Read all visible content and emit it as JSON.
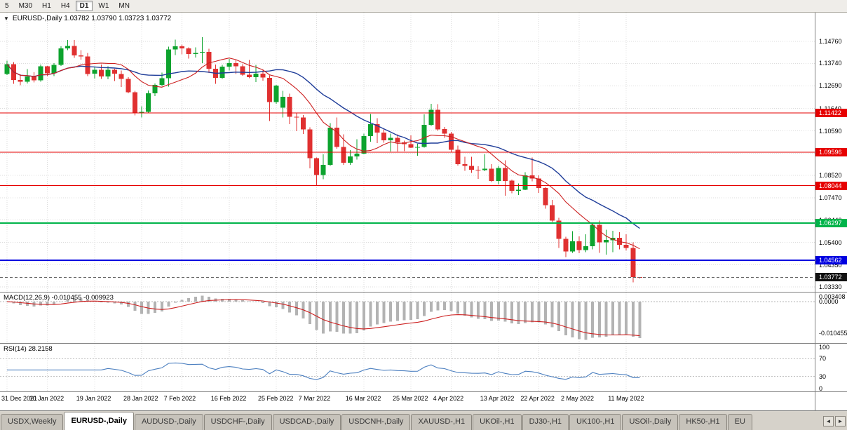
{
  "toolbar": {
    "timeframes": [
      "5",
      "M30",
      "H1",
      "H4",
      "D1",
      "W1",
      "MN"
    ],
    "active": "D1"
  },
  "chart": {
    "collapse_icon": "▼",
    "info_line": "EURUSD-,Daily 1.03782 1.03790 1.03723 1.03772"
  },
  "colors": {
    "up": "#0da32e",
    "down": "#e03030",
    "ma_fast": "#cc1f1f",
    "ma_slow": "#1f3d99",
    "macd_hist": "#b3b3b3",
    "macd_signal": "#cc1f1f",
    "rsi_line": "#4a7ebf",
    "grid": "#dcdcdc",
    "current_line": "#666666",
    "current_badge": "#111111"
  },
  "chart_data": {
    "type": "candlestick",
    "symbol": "EURUSD-",
    "timeframe": "Daily",
    "last_ohlc": {
      "open": 1.03782,
      "high": 1.0379,
      "low": 1.03723,
      "close": 1.03772
    },
    "price_axis": {
      "max": 1.161,
      "min": 1.031,
      "labels": [
        "1.14760",
        "1.13740",
        "1.12690",
        "1.11640",
        "1.10590",
        "1.09550",
        "1.08520",
        "1.07470",
        "1.06440",
        "1.05400",
        "1.04350",
        "1.03330"
      ]
    },
    "x_axis_labels": [
      {
        "text": "31 Dec 2021",
        "i": 0
      },
      {
        "text": "10 Jan 2022",
        "i": 6
      },
      {
        "text": "19 Jan 2022",
        "i": 13
      },
      {
        "text": "28 Jan 2022",
        "i": 20
      },
      {
        "text": "7 Feb 2022",
        "i": 26
      },
      {
        "text": "16 Feb 2022",
        "i": 33
      },
      {
        "text": "25 Feb 2022",
        "i": 40
      },
      {
        "text": "7 Mar 2022",
        "i": 46
      },
      {
        "text": "16 Mar 2022",
        "i": 53
      },
      {
        "text": "25 Mar 2022",
        "i": 60
      },
      {
        "text": "4 Apr 2022",
        "i": 66
      },
      {
        "text": "13 Apr 2022",
        "i": 73
      },
      {
        "text": "22 Apr 2022",
        "i": 79
      },
      {
        "text": "2 May 2022",
        "i": 85
      },
      {
        "text": "11 May 2022",
        "i": 92
      }
    ],
    "candles": [
      [
        1.1325,
        1.1386,
        1.1319,
        1.137
      ],
      [
        1.137,
        1.1379,
        1.1279,
        1.1297
      ],
      [
        1.1297,
        1.1323,
        1.1272,
        1.1288
      ],
      [
        1.1288,
        1.1347,
        1.128,
        1.1312
      ],
      [
        1.1312,
        1.1333,
        1.1285,
        1.1295
      ],
      [
        1.1295,
        1.1368,
        1.1288,
        1.136
      ],
      [
        1.136,
        1.1362,
        1.1314,
        1.1327
      ],
      [
        1.1327,
        1.1375,
        1.1315,
        1.1367
      ],
      [
        1.1367,
        1.1453,
        1.1361,
        1.1443
      ],
      [
        1.1443,
        1.1482,
        1.1435,
        1.1455
      ],
      [
        1.1455,
        1.1483,
        1.1399,
        1.1411
      ],
      [
        1.1411,
        1.1436,
        1.1391,
        1.1406
      ],
      [
        1.1406,
        1.1423,
        1.1314,
        1.1325
      ],
      [
        1.1325,
        1.1359,
        1.1303,
        1.1343
      ],
      [
        1.1343,
        1.1369,
        1.1301,
        1.1313
      ],
      [
        1.1313,
        1.136,
        1.13,
        1.1344
      ],
      [
        1.1344,
        1.1349,
        1.1291,
        1.1325
      ],
      [
        1.1325,
        1.134,
        1.1264,
        1.1301
      ],
      [
        1.1301,
        1.131,
        1.1234,
        1.124
      ],
      [
        1.124,
        1.1246,
        1.1131,
        1.1144
      ],
      [
        1.1144,
        1.1174,
        1.1121,
        1.1148
      ],
      [
        1.1148,
        1.1248,
        1.1141,
        1.1235
      ],
      [
        1.1235,
        1.128,
        1.1222,
        1.1273
      ],
      [
        1.1273,
        1.1331,
        1.1267,
        1.1305
      ],
      [
        1.1305,
        1.1452,
        1.1266,
        1.1438
      ],
      [
        1.1438,
        1.1484,
        1.1412,
        1.1453
      ],
      [
        1.1453,
        1.1461,
        1.1415,
        1.1443
      ],
      [
        1.1443,
        1.1449,
        1.1396,
        1.1417
      ],
      [
        1.1417,
        1.1448,
        1.1401,
        1.1423
      ],
      [
        1.1423,
        1.1495,
        1.1375,
        1.1427
      ],
      [
        1.1427,
        1.1441,
        1.1329,
        1.1348
      ],
      [
        1.1348,
        1.1369,
        1.1278,
        1.1306
      ],
      [
        1.1306,
        1.1367,
        1.1301,
        1.1358
      ],
      [
        1.1358,
        1.1395,
        1.134,
        1.1375
      ],
      [
        1.1375,
        1.139,
        1.1324,
        1.136
      ],
      [
        1.136,
        1.137,
        1.1316,
        1.1321
      ],
      [
        1.1321,
        1.139,
        1.1305,
        1.131
      ],
      [
        1.131,
        1.1366,
        1.1287,
        1.1326
      ],
      [
        1.1326,
        1.1342,
        1.1293,
        1.1307
      ],
      [
        1.1307,
        1.1317,
        1.1106,
        1.1193
      ],
      [
        1.1193,
        1.1274,
        1.1185,
        1.127
      ],
      [
        1.1168,
        1.1246,
        1.1121,
        1.1218
      ],
      [
        1.1218,
        1.1232,
        1.109,
        1.1125
      ],
      [
        1.1125,
        1.1143,
        1.1058,
        1.1122
      ],
      [
        1.1122,
        1.1133,
        1.1045,
        1.1066
      ],
      [
        1.1066,
        1.1076,
        1.0885,
        1.0932
      ],
      [
        1.0932,
        1.0936,
        1.0806,
        1.0854
      ],
      [
        1.0854,
        1.095,
        1.0834,
        1.0901
      ],
      [
        1.0901,
        1.1095,
        1.0896,
        1.1075
      ],
      [
        1.1075,
        1.1121,
        1.0976,
        1.0985
      ],
      [
        1.0985,
        1.1043,
        1.0901,
        1.0911
      ],
      [
        1.0911,
        1.097,
        1.0902,
        1.0941
      ],
      [
        1.0941,
        1.102,
        1.0925,
        1.0954
      ],
      [
        1.0954,
        1.1047,
        1.095,
        1.1035
      ],
      [
        1.1035,
        1.1138,
        1.1009,
        1.109
      ],
      [
        1.109,
        1.1119,
        1.1003,
        1.1051
      ],
      [
        1.1051,
        1.1069,
        1.1004,
        1.1015
      ],
      [
        1.1015,
        1.1046,
        1.0963,
        1.1027
      ],
      [
        1.1027,
        1.1044,
        1.0963,
        1.1005
      ],
      [
        1.1005,
        1.1014,
        1.0965,
        1.0997
      ],
      [
        1.0997,
        1.1039,
        1.0979,
        1.0982
      ],
      [
        1.0982,
        1.0999,
        1.0944,
        1.0984
      ],
      [
        1.0984,
        1.1137,
        1.0982,
        1.1087
      ],
      [
        1.1087,
        1.1185,
        1.1083,
        1.1158
      ],
      [
        1.1158,
        1.1184,
        1.106,
        1.1067
      ],
      [
        1.1067,
        1.1077,
        1.1027,
        1.1046
      ],
      [
        1.1046,
        1.1055,
        1.096,
        1.0972
      ],
      [
        1.0972,
        1.0991,
        1.0898,
        1.0905
      ],
      [
        1.0905,
        1.0939,
        1.0874,
        1.0896
      ],
      [
        1.0896,
        1.0939,
        1.0863,
        1.0878
      ],
      [
        1.0878,
        1.0894,
        1.0836,
        1.0876
      ],
      [
        1.0876,
        1.095,
        1.0871,
        1.0883
      ],
      [
        1.0883,
        1.0905,
        1.0821,
        1.0826
      ],
      [
        1.0826,
        1.0897,
        1.0809,
        1.0886
      ],
      [
        1.0886,
        1.0923,
        1.0758,
        1.0827
      ],
      [
        1.0827,
        1.0832,
        1.0769,
        1.0781
      ],
      [
        1.0781,
        1.0815,
        1.0761,
        1.0786
      ],
      [
        1.0786,
        1.0867,
        1.0783,
        1.0852
      ],
      [
        1.0852,
        1.0936,
        1.0824,
        1.0837
      ],
      [
        1.0837,
        1.0852,
        1.077,
        1.0794
      ],
      [
        1.0794,
        1.0798,
        1.0697,
        1.0713
      ],
      [
        1.0713,
        1.0738,
        1.0635,
        1.0642
      ],
      [
        1.0642,
        1.0655,
        1.0514,
        1.0557
      ],
      [
        1.0557,
        1.0567,
        1.0471,
        1.0498
      ],
      [
        1.0498,
        1.0593,
        1.0492,
        1.0545
      ],
      [
        1.0545,
        1.0568,
        1.049,
        1.0505
      ],
      [
        1.0505,
        1.0578,
        1.0495,
        1.0522
      ],
      [
        1.0522,
        1.0632,
        1.0507,
        1.0622
      ],
      [
        1.0622,
        1.0642,
        1.0492,
        1.0541
      ],
      [
        1.0541,
        1.0599,
        1.0483,
        1.0551
      ],
      [
        1.0551,
        1.0594,
        1.0495,
        1.0561
      ],
      [
        1.0561,
        1.0587,
        1.0508,
        1.0529
      ],
      [
        1.0529,
        1.0578,
        1.0503,
        1.0514
      ],
      [
        1.0514,
        1.054,
        1.0354,
        1.0379
      ],
      [
        1.03782,
        1.0379,
        1.03723,
        1.03772
      ]
    ],
    "overlays": {
      "ma_fast_period": 10,
      "ma_slow_period": 20
    },
    "hlines": [
      {
        "price": 1.11422,
        "label": "1.11422",
        "color": "#e60000",
        "width": 1
      },
      {
        "price": 1.09596,
        "label": "1.09596",
        "color": "#e60000",
        "width": 1
      },
      {
        "price": 1.08044,
        "label": "1.08044",
        "color": "#e60000",
        "width": 1
      },
      {
        "price": 1.06297,
        "label": "1.06297",
        "color": "#00b44a",
        "width": 2
      },
      {
        "price": 1.04562,
        "label": "1.04562",
        "color": "#0000e0",
        "width": 2
      }
    ],
    "current_price": {
      "value": 1.03772,
      "label": "1.03772"
    },
    "macd": {
      "fast": 12,
      "slow": 26,
      "signal": 9,
      "title": "MACD(12,26,9) -0.010455 -0.009923",
      "axis_labels": [
        {
          "text": "0.003408",
          "v": 0.003408
        },
        {
          "text": "0.0000",
          "v": 0
        },
        {
          "text": "-0.010455",
          "v": -0.010455
        }
      ]
    },
    "rsi": {
      "period": 14,
      "value": "28.2158",
      "title": "RSI(14) 28.2158",
      "axis_labels": [
        {
          "text": "100",
          "v": 100
        },
        {
          "text": "70",
          "v": 70
        },
        {
          "text": "30",
          "v": 30
        },
        {
          "text": "0",
          "v": 0
        }
      ],
      "levels": [
        70,
        30
      ]
    }
  },
  "tabs": {
    "items": [
      "USDX,Weekly",
      "EURUSD-,Daily",
      "AUDUSD-,Daily",
      "USDCHF-,Daily",
      "USDCAD-,Daily",
      "USDCNH-,Daily",
      "XAUUSD-,H1",
      "UKOil-,H1",
      "DJ30-,H1",
      "UK100-,H1",
      "USOil-,Daily",
      "HK50-,H1",
      "EU"
    ],
    "active_index": 1,
    "scroll_icons": [
      "◄",
      "►"
    ]
  }
}
